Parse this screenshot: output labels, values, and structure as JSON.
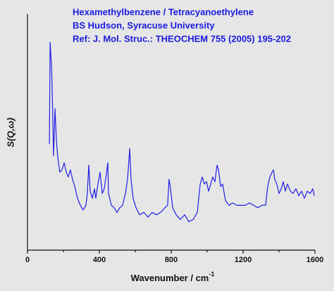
{
  "chart_data": {
    "type": "line",
    "title_lines": [
      "Hexamethylbenzene / Tetracyanoethylene",
      "BS Hudson, Syracuse University",
      "Ref: J. Mol. Struc.: THEOCHEM 755 (2005) 195-202"
    ],
    "x_label": "Wavenumber / cm",
    "x_label_sup": "-1",
    "y_label": "S(Q,ω)",
    "xlim": [
      0,
      1600
    ],
    "xticks": [
      0,
      400,
      800,
      1200,
      1600
    ],
    "ylim": [
      0,
      100
    ],
    "series": [
      {
        "name": "S(Q,ω)",
        "color": "#1f1fe6",
        "x": [
          122,
          126,
          133,
          137,
          145,
          153,
          161,
          169,
          180,
          192,
          204,
          216,
          227,
          239,
          251,
          263,
          278,
          294,
          310,
          325,
          333,
          341,
          349,
          361,
          373,
          380,
          392,
          404,
          416,
          427,
          435,
          447,
          451,
          467,
          482,
          498,
          514,
          529,
          545,
          557,
          569,
          576,
          588,
          604,
          624,
          647,
          671,
          694,
          718,
          741,
          765,
          780,
          788,
          796,
          808,
          827,
          851,
          875,
          898,
          922,
          945,
          961,
          973,
          984,
          996,
          1008,
          1020,
          1031,
          1043,
          1055,
          1063,
          1075,
          1086,
          1102,
          1122,
          1141,
          1165,
          1188,
          1212,
          1235,
          1259,
          1282,
          1306,
          1325,
          1337,
          1349,
          1361,
          1369,
          1376,
          1388,
          1400,
          1412,
          1424,
          1435,
          1447,
          1463,
          1478,
          1494,
          1510,
          1525,
          1541,
          1557,
          1573,
          1588,
          1596
        ],
        "values": [
          45,
          88,
          79,
          70,
          40,
          60,
          46,
          39,
          33,
          34,
          37,
          33,
          31,
          34,
          30,
          27,
          22,
          19,
          17,
          19,
          24,
          36,
          25,
          22,
          26,
          22,
          28,
          33,
          24,
          26,
          30,
          37,
          24,
          19,
          18,
          16,
          18,
          19,
          24,
          30,
          43,
          30,
          22,
          18,
          15,
          16,
          14,
          16,
          15,
          16,
          18,
          19,
          30,
          26,
          18,
          15,
          13,
          15,
          12,
          13,
          16,
          28,
          31,
          28,
          29,
          25,
          28,
          31,
          29,
          36,
          34,
          27,
          28,
          21,
          19,
          20,
          19,
          19,
          19,
          20,
          19,
          18,
          19,
          19,
          27,
          31,
          33,
          34,
          30,
          28,
          24,
          26,
          29,
          25,
          28,
          25,
          24,
          26,
          23,
          25,
          22,
          25,
          24,
          26,
          23
        ]
      }
    ]
  }
}
